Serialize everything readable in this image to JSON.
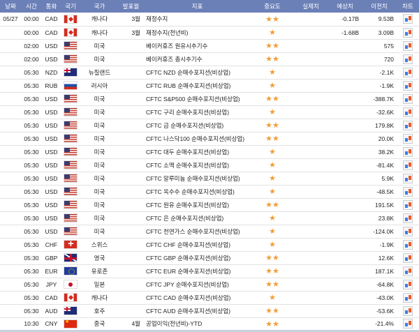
{
  "headers": [
    "날짜",
    "시간",
    "통화",
    "국기",
    "국가",
    "발표월",
    "지표",
    "중요도",
    "실제치",
    "예상치",
    "이전치",
    "차트"
  ],
  "colors": {
    "header_bg": "#6c80b8",
    "star": "#f39c35"
  },
  "rows": [
    {
      "date": "05/27",
      "time": "00:00",
      "cur": "CAD",
      "flag": "ca",
      "country": "캐나다",
      "month": "3월",
      "ind": "재정수지",
      "stars": 2,
      "actual": "",
      "fcst": "-0.17B",
      "prev": "9.53B"
    },
    {
      "date": "",
      "time": "00:00",
      "cur": "CAD",
      "flag": "ca",
      "country": "캐나다",
      "month": "3월",
      "ind": "재정수지(전년비)",
      "stars": 1,
      "actual": "",
      "fcst": "-1.68B",
      "prev": "3.09B"
    },
    {
      "date": "",
      "time": "02:00",
      "cur": "USD",
      "flag": "us",
      "country": "미국",
      "month": "",
      "ind": "베이커휴즈 원유시추기수",
      "stars": 2,
      "actual": "",
      "fcst": "",
      "prev": "575"
    },
    {
      "date": "",
      "time": "02:00",
      "cur": "USD",
      "flag": "us",
      "country": "미국",
      "month": "",
      "ind": "베이커휴즈 총시추기수",
      "stars": 2,
      "actual": "",
      "fcst": "",
      "prev": "720"
    },
    {
      "date": "",
      "time": "05:30",
      "cur": "NZD",
      "flag": "nz",
      "country": "뉴질랜드",
      "month": "",
      "ind": "CFTC NZD 순매수포지션(비상업)",
      "stars": 1,
      "actual": "",
      "fcst": "",
      "prev": "-2.1K"
    },
    {
      "date": "",
      "time": "05:30",
      "cur": "RUB",
      "flag": "ru",
      "country": "러시아",
      "month": "",
      "ind": "CFTC RUB 순매수포지션(비상업)",
      "stars": 1,
      "actual": "",
      "fcst": "",
      "prev": "-1.9K"
    },
    {
      "date": "",
      "time": "05:30",
      "cur": "USD",
      "flag": "us",
      "country": "미국",
      "month": "",
      "ind": "CFTC S&P500 순매수포지션(비상업)",
      "stars": 2,
      "actual": "",
      "fcst": "",
      "prev": "-388.7K"
    },
    {
      "date": "",
      "time": "05:30",
      "cur": "USD",
      "flag": "us",
      "country": "미국",
      "month": "",
      "ind": "CFTC 구리 순매수포지션(비상업)",
      "stars": 1,
      "actual": "",
      "fcst": "",
      "prev": "-32.6K"
    },
    {
      "date": "",
      "time": "05:30",
      "cur": "USD",
      "flag": "us",
      "country": "미국",
      "month": "",
      "ind": "CFTC 금 순매수포지션(비상업)",
      "stars": 2,
      "actual": "",
      "fcst": "",
      "prev": "179.8K"
    },
    {
      "date": "",
      "time": "05:30",
      "cur": "USD",
      "flag": "us",
      "country": "미국",
      "month": "",
      "ind": "CFTC 나스닥100 순매수포지션(비상업)",
      "stars": 2,
      "actual": "",
      "fcst": "",
      "prev": "20.0K"
    },
    {
      "date": "",
      "time": "05:30",
      "cur": "USD",
      "flag": "us",
      "country": "미국",
      "month": "",
      "ind": "CFTC 대두 순매수포지션(비상업)",
      "stars": 1,
      "actual": "",
      "fcst": "",
      "prev": "38.2K"
    },
    {
      "date": "",
      "time": "05:30",
      "cur": "USD",
      "flag": "us",
      "country": "미국",
      "month": "",
      "ind": "CFTC 소맥 순매수포지션(비상업)",
      "stars": 1,
      "actual": "",
      "fcst": "",
      "prev": "-81.4K"
    },
    {
      "date": "",
      "time": "05:30",
      "cur": "USD",
      "flag": "us",
      "country": "미국",
      "month": "",
      "ind": "CFTC 알루미늄 순매수포지션(비상업)",
      "stars": 1,
      "actual": "",
      "fcst": "",
      "prev": "5.9K"
    },
    {
      "date": "",
      "time": "05:30",
      "cur": "USD",
      "flag": "us",
      "country": "미국",
      "month": "",
      "ind": "CFTC 옥수수 순매수포지션(비상업)",
      "stars": 1,
      "actual": "",
      "fcst": "",
      "prev": "-48.5K"
    },
    {
      "date": "",
      "time": "05:30",
      "cur": "USD",
      "flag": "us",
      "country": "미국",
      "month": "",
      "ind": "CFTC 원유 순매수포지션(비상업)",
      "stars": 2,
      "actual": "",
      "fcst": "",
      "prev": "191.5K"
    },
    {
      "date": "",
      "time": "05:30",
      "cur": "USD",
      "flag": "us",
      "country": "미국",
      "month": "",
      "ind": "CFTC 은 순매수포지션(비상업)",
      "stars": 1,
      "actual": "",
      "fcst": "",
      "prev": "23.8K"
    },
    {
      "date": "",
      "time": "05:30",
      "cur": "USD",
      "flag": "us",
      "country": "미국",
      "month": "",
      "ind": "CFTC 천연가스 순매수포지션(비상업)",
      "stars": 1,
      "actual": "",
      "fcst": "",
      "prev": "-124.0K"
    },
    {
      "date": "",
      "time": "05:30",
      "cur": "CHF",
      "flag": "ch",
      "country": "스위스",
      "month": "",
      "ind": "CFTC CHF 순매수포지션(비상업)",
      "stars": 1,
      "actual": "",
      "fcst": "",
      "prev": "-1.9K"
    },
    {
      "date": "",
      "time": "05:30",
      "cur": "GBP",
      "flag": "gb",
      "country": "영국",
      "month": "",
      "ind": "CFTC GBP 순매수포지션(비상업)",
      "stars": 2,
      "actual": "",
      "fcst": "",
      "prev": "12.6K"
    },
    {
      "date": "",
      "time": "05:30",
      "cur": "EUR",
      "flag": "eu",
      "country": "유로존",
      "month": "",
      "ind": "CFTC EUR 순매수포지션(비상업)",
      "stars": 2,
      "actual": "",
      "fcst": "",
      "prev": "187.1K"
    },
    {
      "date": "",
      "time": "05:30",
      "cur": "JPY",
      "flag": "jp",
      "country": "일본",
      "month": "",
      "ind": "CFTC JPY 순매수포지션(비상업)",
      "stars": 2,
      "actual": "",
      "fcst": "",
      "prev": "-64.8K"
    },
    {
      "date": "",
      "time": "05:30",
      "cur": "CAD",
      "flag": "ca",
      "country": "캐나다",
      "month": "",
      "ind": "CFTC CAD 순매수포지션(비상업)",
      "stars": 1,
      "actual": "",
      "fcst": "",
      "prev": "-43.0K"
    },
    {
      "date": "",
      "time": "05:30",
      "cur": "AUD",
      "flag": "au",
      "country": "호주",
      "month": "",
      "ind": "CFTC AUD 순매수포지션(비상업)",
      "stars": 2,
      "actual": "",
      "fcst": "",
      "prev": "-53.6K"
    },
    {
      "date": "",
      "time": "10:30",
      "cur": "CNY",
      "flag": "cn",
      "country": "중국",
      "month": "4월",
      "ind": "공업이익(전년비)-YTD",
      "stars": 2,
      "actual": "",
      "fcst": "",
      "prev": "-21.4%"
    }
  ]
}
